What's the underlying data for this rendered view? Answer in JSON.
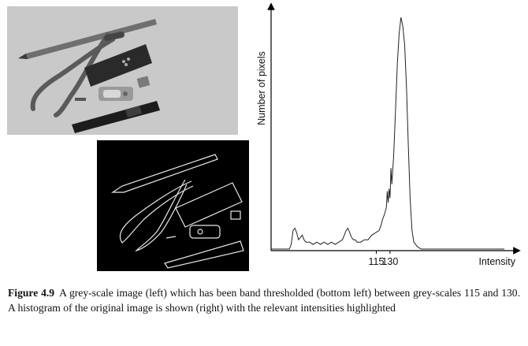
{
  "figure": {
    "label": "Figure 4.9",
    "caption": "A grey-scale image (left) which has been band thresholded (bottom left) between grey-scales 115 and 130. A histogram of the original image is shown (right) with the relevant intensities highlighted"
  },
  "images": {
    "grayscale_alt": "grey-scale image of tools",
    "thresholded_alt": "band thresholded image"
  },
  "chart_data": {
    "type": "line",
    "title": "",
    "xlabel": "Intensity",
    "ylabel": "Number of pixels",
    "xticks": [
      {
        "label": "115",
        "value": 115
      },
      {
        "label": "130",
        "value": 130
      }
    ],
    "xlim": [
      0,
      255
    ],
    "ylim": [
      0,
      100
    ],
    "series": [
      {
        "name": "histogram",
        "x": [
          0,
          18,
          20,
          22,
          24,
          26,
          28,
          30,
          32,
          34,
          36,
          38,
          42,
          46,
          50,
          54,
          58,
          62,
          66,
          70,
          74,
          78,
          80,
          82,
          84,
          86,
          88,
          90,
          92,
          94,
          98,
          102,
          106,
          110,
          114,
          118,
          120,
          122,
          124,
          126,
          127,
          128,
          129,
          130,
          131,
          132,
          134,
          136,
          138,
          140,
          142,
          144,
          146,
          148,
          150,
          152,
          154,
          156,
          160,
          164,
          168,
          172,
          176,
          180,
          200,
          240,
          255
        ],
        "y": [
          0,
          0,
          0,
          2,
          8,
          9,
          7,
          4,
          5,
          6,
          4,
          3,
          3,
          2,
          3,
          2,
          3,
          2,
          3,
          2,
          3,
          4,
          6,
          8,
          9,
          7,
          5,
          4,
          4,
          3,
          3,
          4,
          4,
          6,
          7,
          8,
          10,
          13,
          15,
          18,
          25,
          20,
          26,
          22,
          35,
          28,
          40,
          60,
          80,
          93,
          100,
          96,
          88,
          70,
          45,
          22,
          8,
          3,
          1,
          0,
          0,
          0,
          0,
          0,
          0,
          0,
          0
        ]
      }
    ],
    "highlighted_intensities": [
      115,
      130
    ]
  }
}
